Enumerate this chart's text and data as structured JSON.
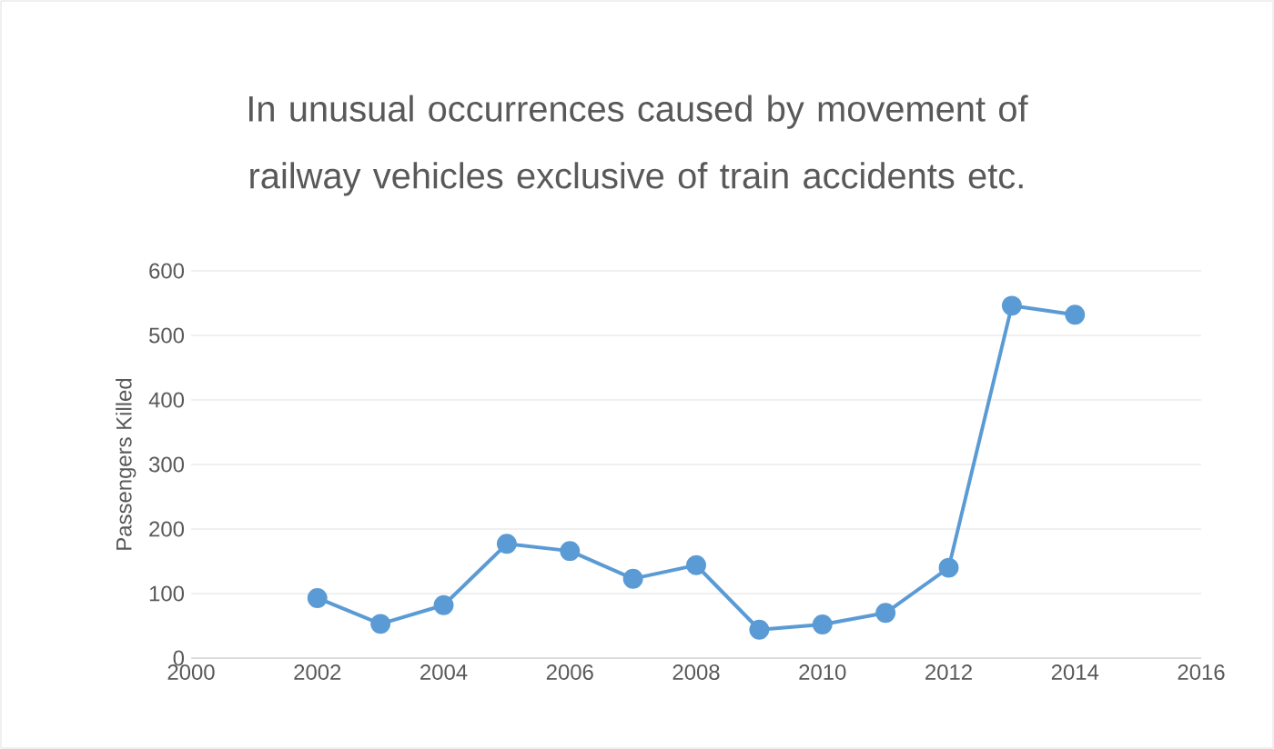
{
  "chart_data": {
    "type": "line",
    "title": "In unusual occurrences caused by movement of railway vehicles exclusive of train accidents etc.",
    "ylabel": "Passengers Killed",
    "x": [
      2002,
      2003,
      2004,
      2005,
      2006,
      2007,
      2008,
      2009,
      2010,
      2011,
      2012,
      2013,
      2014
    ],
    "series": [
      {
        "color": "#5b9bd5",
        "values": [
          93,
          53,
          82,
          177,
          166,
          123,
          144,
          44,
          52,
          70,
          140,
          546,
          532
        ]
      }
    ],
    "xlim": [
      2000,
      2016
    ],
    "xticks": [
      2000,
      2002,
      2004,
      2006,
      2008,
      2010,
      2012,
      2014,
      2016
    ],
    "ylim": [
      0,
      600
    ],
    "yticks": [
      0,
      100,
      200,
      300,
      400,
      500,
      600
    ],
    "grid": "y",
    "marker": "circle",
    "line_style": "solid"
  }
}
